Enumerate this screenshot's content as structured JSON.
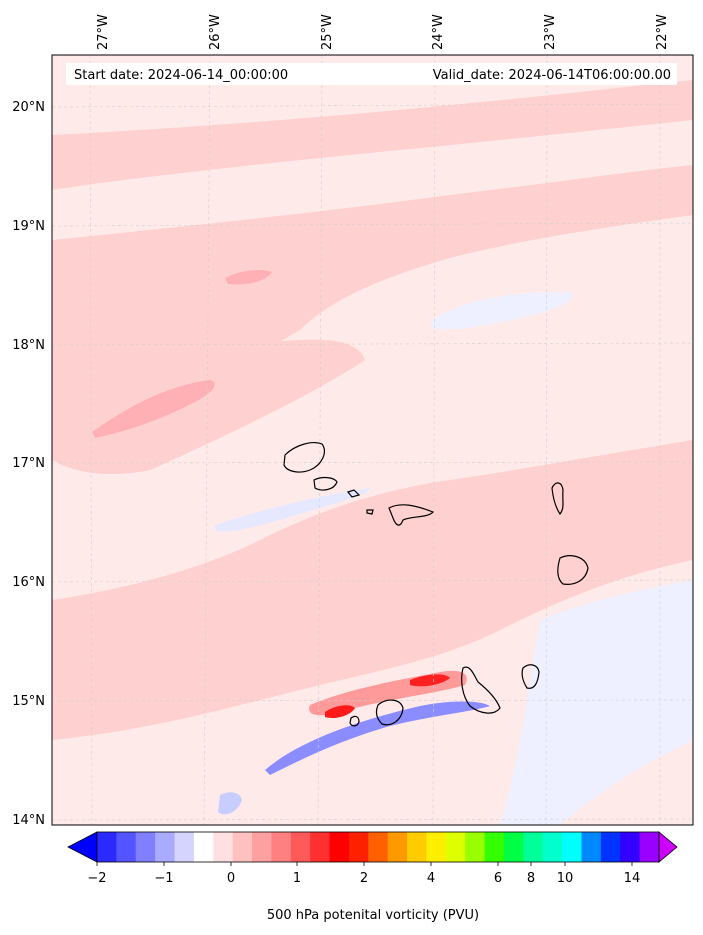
{
  "header": {
    "start_date": "Start date: 2024-06-14_00:00:00",
    "valid_date": "Valid_date: 2024-06-14T06:00:00.00"
  },
  "map": {
    "lon_labels": [
      "27°W",
      "26°W",
      "25°W",
      "24°W",
      "23°W",
      "22°W"
    ],
    "lat_labels": [
      "20°N",
      "19°N",
      "18°N",
      "17°N",
      "16°N",
      "15°N",
      "14°N"
    ],
    "grid": true,
    "background_color": "#ffeaea",
    "coastline_color": "#000000"
  },
  "colorbar": {
    "title": "500 hPa potenital vorticity (PVU)",
    "tick_labels": [
      "−2",
      "−1",
      "0",
      "1",
      "2",
      "4",
      "6",
      "8",
      "10",
      "14"
    ],
    "colors": [
      "#0000ff",
      "#2a2aff",
      "#5555ff",
      "#8080ff",
      "#aaaaff",
      "#d4d4ff",
      "#ffffff",
      "#ffe0e0",
      "#ffc0c0",
      "#ffa0a0",
      "#ff8080",
      "#ff5a5a",
      "#ff3030",
      "#ff0000",
      "#ff2000",
      "#ff6000",
      "#ff9900",
      "#ffcc00",
      "#ffee00",
      "#ddff00",
      "#99ff00",
      "#33ff00",
      "#00ff44",
      "#00ff99",
      "#00ffcc",
      "#00ffff",
      "#0088ff",
      "#0033ff",
      "#3300ff",
      "#9900ff",
      "#cc00ff"
    ]
  }
}
